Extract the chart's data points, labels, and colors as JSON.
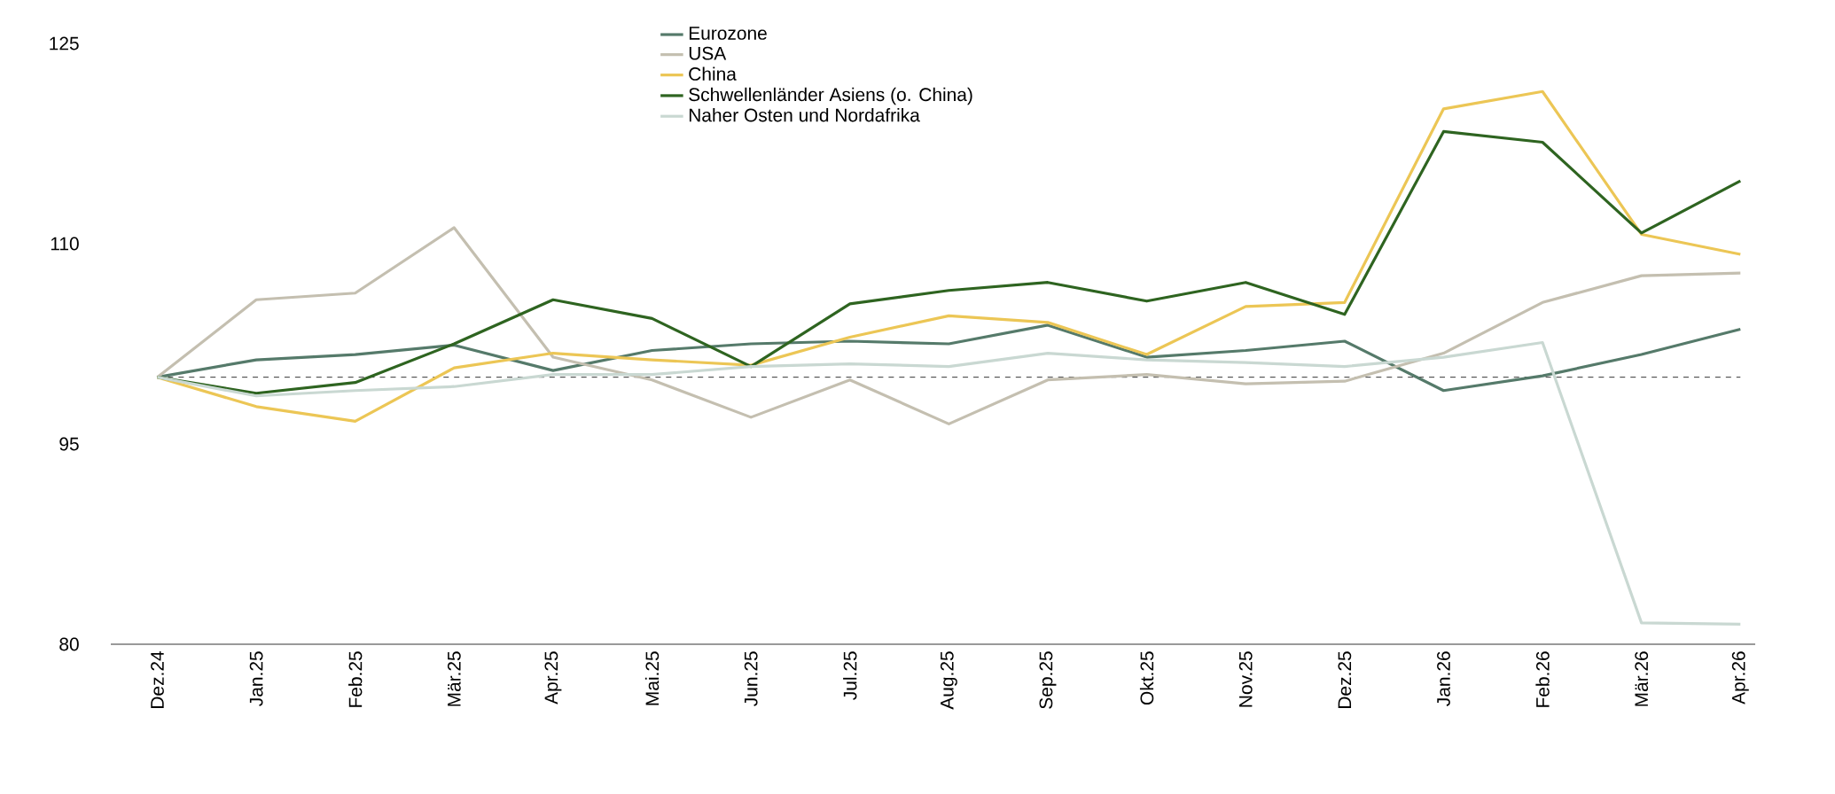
{
  "chart_data": {
    "type": "line",
    "categories": [
      "Dez.24",
      "Jan.25",
      "Feb.25",
      "Mär.25",
      "Apr.25",
      "Mai.25",
      "Jun.25",
      "Jul.25",
      "Aug.25",
      "Sep.25",
      "Okt.25",
      "Nov.25",
      "Dez.25",
      "Jan.26",
      "Feb.26",
      "Mär.26",
      "Apr.26"
    ],
    "series": [
      {
        "name": "Eurozone",
        "color": "#557a6a",
        "values": [
          100,
          101.3,
          101.7,
          102.4,
          100.5,
          102.0,
          102.5,
          102.7,
          102.5,
          103.9,
          101.5,
          102.0,
          102.7,
          99.0,
          100.1,
          101.7,
          103.6
        ]
      },
      {
        "name": "USA",
        "color": "#c4bfb0",
        "values": [
          100,
          105.8,
          106.3,
          111.2,
          101.5,
          99.8,
          97.0,
          99.8,
          96.5,
          99.8,
          100.2,
          99.5,
          99.7,
          101.8,
          105.6,
          107.6,
          107.8
        ]
      },
      {
        "name": "China",
        "color": "#ecc655",
        "values": [
          100,
          97.8,
          96.7,
          100.7,
          101.8,
          101.3,
          100.9,
          103.0,
          104.6,
          104.1,
          101.7,
          105.3,
          105.6,
          120.1,
          121.4,
          110.7,
          109.2
        ]
      },
      {
        "name": "Schwellenländer Asiens (o. China)",
        "color": "#2e6420",
        "values": [
          100,
          98.8,
          99.6,
          102.5,
          105.8,
          104.4,
          100.8,
          105.5,
          106.5,
          107.1,
          105.7,
          107.1,
          104.7,
          118.4,
          117.6,
          110.8,
          114.7
        ]
      },
      {
        "name": "Naher Osten und Nordafrika",
        "color": "#c9d8d2",
        "values": [
          100,
          98.6,
          99.0,
          99.3,
          100.2,
          100.2,
          100.8,
          101.0,
          100.8,
          101.8,
          101.3,
          101.1,
          100.8,
          101.5,
          102.6,
          81.6,
          81.5
        ]
      }
    ],
    "ylim": [
      80,
      125
    ],
    "yticks": [
      80,
      95,
      110,
      125
    ],
    "ref_lines": [
      {
        "axis": "y",
        "value": 100,
        "color": "#000000",
        "line_style": "dashed"
      }
    ],
    "legend": "top",
    "marker": "none",
    "line_style": "solid"
  }
}
